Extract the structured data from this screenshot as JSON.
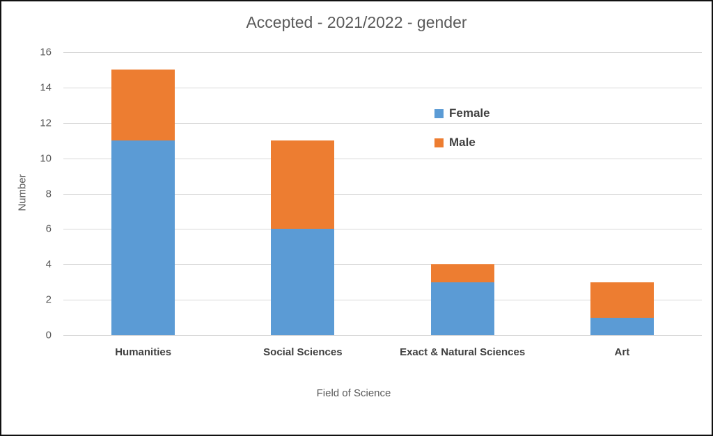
{
  "chart_data": {
    "type": "bar",
    "stacked": true,
    "title": "Accepted - 2021/2022 - gender",
    "xlabel": "Field of Science",
    "ylabel": "Number",
    "categories": [
      "Humanities",
      "Social Sciences",
      "Exact & Natural Sciences",
      "Art"
    ],
    "series": [
      {
        "name": "Female",
        "color": "#5B9BD5",
        "values": [
          11,
          6,
          3,
          1
        ]
      },
      {
        "name": "Male",
        "color": "#ED7D31",
        "values": [
          4,
          5,
          1,
          2
        ]
      }
    ],
    "totals": [
      15,
      11,
      4,
      3
    ],
    "ylim": [
      0,
      16
    ],
    "yticks": [
      0,
      2,
      4,
      6,
      8,
      10,
      12,
      14,
      16
    ],
    "grid": "horizontal",
    "gridline_color": "#D9D9D9",
    "legend_position": "center-right"
  }
}
